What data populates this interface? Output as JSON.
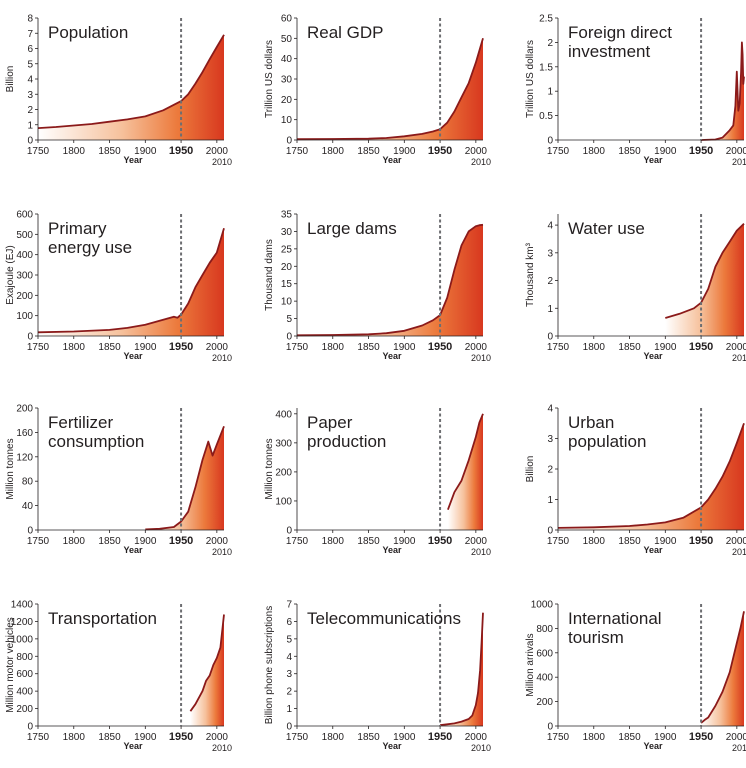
{
  "chart_data": [
    {
      "type": "area",
      "title_lines": [
        "Population"
      ],
      "ylabel": "Billion",
      "xlabel": "Year",
      "xlim": [
        1750,
        2010
      ],
      "ylim": [
        0,
        8
      ],
      "yticks": [
        0,
        1,
        2,
        3,
        4,
        5,
        6,
        7,
        8
      ],
      "xticks": [
        1750,
        1800,
        1850,
        1900,
        1950,
        2000
      ],
      "marker_year": 1950,
      "end_year_label": "2010",
      "x": [
        1750,
        1775,
        1800,
        1825,
        1850,
        1875,
        1900,
        1925,
        1950,
        1960,
        1970,
        1980,
        1990,
        2000,
        2010
      ],
      "y": [
        0.78,
        0.85,
        0.95,
        1.05,
        1.2,
        1.35,
        1.55,
        1.95,
        2.55,
        3.0,
        3.7,
        4.45,
        5.3,
        6.1,
        6.9
      ]
    },
    {
      "type": "area",
      "title_lines": [
        "Real GDP"
      ],
      "ylabel": "Trillion US dollars",
      "xlabel": "Year",
      "xlim": [
        1750,
        2010
      ],
      "ylim": [
        0,
        60
      ],
      "yticks": [
        0,
        10,
        20,
        30,
        40,
        50,
        60
      ],
      "xticks": [
        1750,
        1800,
        1850,
        1900,
        1950,
        2000
      ],
      "marker_year": 1950,
      "end_year_label": "2010",
      "x": [
        1750,
        1800,
        1850,
        1875,
        1900,
        1925,
        1940,
        1950,
        1960,
        1970,
        1980,
        1990,
        2000,
        2005,
        2010
      ],
      "y": [
        0.4,
        0.5,
        0.7,
        1.0,
        1.8,
        3.0,
        4.2,
        5.3,
        8.5,
        14,
        21,
        28,
        38,
        44,
        50
      ]
    },
    {
      "type": "area",
      "title_lines": [
        "Foreign direct",
        "investment"
      ],
      "ylabel": "Trillion US dollars",
      "xlabel": "Year",
      "xlim": [
        1750,
        2010
      ],
      "ylim": [
        0,
        2.5
      ],
      "yticks": [
        0,
        0.5,
        1,
        1.5,
        2,
        2.5
      ],
      "xticks": [
        1750,
        1800,
        1850,
        1900,
        1950,
        2000
      ],
      "marker_year": 1950,
      "end_year_label": "2010",
      "x": [
        1950,
        1970,
        1980,
        1990,
        1995,
        1998,
        2000,
        2002,
        2004,
        2006,
        2007,
        2008,
        2009,
        2010
      ],
      "y": [
        0.0,
        0.01,
        0.05,
        0.2,
        0.3,
        0.7,
        1.4,
        0.6,
        0.75,
        1.4,
        2.0,
        1.75,
        1.15,
        1.3
      ]
    },
    {
      "type": "area",
      "title_lines": [
        "Primary",
        "energy use"
      ],
      "ylabel": "Exajoule (EJ)",
      "xlabel": "Year",
      "xlim": [
        1750,
        2010
      ],
      "ylim": [
        0,
        600
      ],
      "yticks": [
        0,
        100,
        200,
        300,
        400,
        500,
        600
      ],
      "xticks": [
        1750,
        1800,
        1850,
        1900,
        1950,
        2000
      ],
      "marker_year": 1950,
      "end_year_label": "2010",
      "x": [
        1750,
        1800,
        1850,
        1875,
        1900,
        1920,
        1940,
        1945,
        1950,
        1960,
        1970,
        1980,
        1990,
        2000,
        2010
      ],
      "y": [
        18,
        22,
        30,
        40,
        55,
        75,
        95,
        90,
        105,
        160,
        240,
        300,
        360,
        410,
        530
      ]
    },
    {
      "type": "area",
      "title_lines": [
        "Large dams"
      ],
      "ylabel": "Thousand dams",
      "xlabel": "Year",
      "xlim": [
        1750,
        2010
      ],
      "ylim": [
        0,
        35
      ],
      "yticks": [
        0,
        5,
        10,
        15,
        20,
        25,
        30,
        35
      ],
      "xticks": [
        1750,
        1800,
        1850,
        1900,
        1950,
        2000
      ],
      "marker_year": 1950,
      "end_year_label": "2010",
      "x": [
        1750,
        1800,
        1850,
        1875,
        1900,
        1925,
        1940,
        1950,
        1960,
        1970,
        1980,
        1990,
        2000,
        2005,
        2010
      ],
      "y": [
        0.2,
        0.3,
        0.5,
        0.8,
        1.5,
        3.0,
        4.5,
        6.0,
        11,
        19,
        26,
        30,
        31.5,
        31.8,
        31.9
      ]
    },
    {
      "type": "area",
      "title_lines": [
        "Water use"
      ],
      "ylabel": "Thousand km³",
      "xlabel": "Year",
      "xlim": [
        1750,
        2010
      ],
      "ylim": [
        0,
        4.4
      ],
      "yticks": [
        0,
        1,
        2,
        3,
        4
      ],
      "xticks": [
        1750,
        1800,
        1850,
        1900,
        1950,
        2000
      ],
      "marker_year": 1950,
      "end_year_label": "2010",
      "x": [
        1900,
        1920,
        1940,
        1950,
        1960,
        1970,
        1980,
        1990,
        2000,
        2010
      ],
      "y": [
        0.65,
        0.8,
        1.0,
        1.2,
        1.7,
        2.5,
        3.0,
        3.4,
        3.8,
        4.05
      ]
    },
    {
      "type": "area",
      "title_lines": [
        "Fertilizer",
        "consumption"
      ],
      "ylabel": "Million tonnes",
      "xlabel": "Year",
      "xlim": [
        1750,
        2010
      ],
      "ylim": [
        0,
        200
      ],
      "yticks": [
        0,
        40,
        80,
        120,
        160,
        200
      ],
      "xticks": [
        1750,
        1800,
        1850,
        1900,
        1950,
        2000
      ],
      "marker_year": 1950,
      "end_year_label": "2010",
      "x": [
        1900,
        1920,
        1940,
        1950,
        1960,
        1970,
        1980,
        1988,
        1994,
        2000,
        2005,
        2010
      ],
      "y": [
        1,
        2,
        5,
        14,
        30,
        70,
        115,
        145,
        122,
        140,
        155,
        170
      ]
    },
    {
      "type": "area",
      "title_lines": [
        "Paper",
        "production"
      ],
      "ylabel": "Million tonnes",
      "xlabel": "Year",
      "xlim": [
        1750,
        2010
      ],
      "ylim": [
        0,
        420
      ],
      "yticks": [
        0,
        100,
        200,
        300,
        400
      ],
      "xticks": [
        1750,
        1800,
        1850,
        1900,
        1950,
        2000
      ],
      "marker_year": 1950,
      "end_year_label": "2010",
      "x": [
        1961,
        1970,
        1980,
        1990,
        2000,
        2005,
        2010
      ],
      "y": [
        70,
        130,
        170,
        240,
        320,
        370,
        400
      ]
    },
    {
      "type": "area",
      "title_lines": [
        "Urban",
        "population"
      ],
      "ylabel": "Billion",
      "xlabel": "Year",
      "xlim": [
        1750,
        2010
      ],
      "ylim": [
        0,
        4
      ],
      "yticks": [
        0,
        1,
        2,
        3,
        4
      ],
      "xticks": [
        1750,
        1800,
        1850,
        1900,
        1950,
        2000
      ],
      "marker_year": 1950,
      "end_year_label": "2010",
      "x": [
        1750,
        1800,
        1850,
        1875,
        1900,
        1925,
        1950,
        1960,
        1970,
        1980,
        1990,
        2000,
        2010
      ],
      "y": [
        0.07,
        0.09,
        0.13,
        0.18,
        0.25,
        0.4,
        0.74,
        1.0,
        1.35,
        1.75,
        2.25,
        2.85,
        3.5
      ]
    },
    {
      "type": "area",
      "title_lines": [
        "Transportation"
      ],
      "ylabel": "Million motor vehicles",
      "xlabel": "Year",
      "xlim": [
        1750,
        2010
      ],
      "ylim": [
        0,
        1400
      ],
      "yticks": [
        0,
        200,
        400,
        600,
        800,
        1000,
        1200,
        1400
      ],
      "xticks": [
        1750,
        1800,
        1850,
        1900,
        1950,
        2000
      ],
      "marker_year": 1950,
      "end_year_label": "2010",
      "x": [
        1963,
        1970,
        1980,
        1985,
        1990,
        1995,
        2000,
        2005,
        2010
      ],
      "y": [
        170,
        250,
        400,
        520,
        580,
        700,
        780,
        900,
        1280
      ]
    },
    {
      "type": "area",
      "title_lines": [
        "Telecommunications"
      ],
      "ylabel": "Billion phone subscriptions",
      "xlabel": "Year",
      "xlim": [
        1750,
        2010
      ],
      "ylim": [
        0,
        7
      ],
      "yticks": [
        0,
        1,
        2,
        3,
        4,
        5,
        6,
        7
      ],
      "xticks": [
        1750,
        1800,
        1850,
        1900,
        1950,
        2000
      ],
      "marker_year": 1950,
      "end_year_label": "2010",
      "x": [
        1950,
        1960,
        1970,
        1980,
        1990,
        1995,
        2000,
        2003,
        2006,
        2008,
        2010
      ],
      "y": [
        0.05,
        0.1,
        0.15,
        0.25,
        0.4,
        0.6,
        1.2,
        1.9,
        3.2,
        4.8,
        6.5
      ]
    },
    {
      "type": "area",
      "title_lines": [
        "International",
        "tourism"
      ],
      "ylabel": "Million arrivals",
      "xlabel": "Year",
      "xlim": [
        1750,
        2010
      ],
      "ylim": [
        0,
        1000
      ],
      "yticks": [
        0,
        200,
        400,
        600,
        800,
        1000
      ],
      "xticks": [
        1750,
        1800,
        1850,
        1900,
        1950,
        2000
      ],
      "marker_year": 1950,
      "end_year_label": "2010",
      "x": [
        1950,
        1955,
        1960,
        1970,
        1980,
        1990,
        2000,
        2005,
        2010
      ],
      "y": [
        25,
        50,
        70,
        165,
        280,
        440,
        680,
        800,
        940
      ]
    }
  ]
}
